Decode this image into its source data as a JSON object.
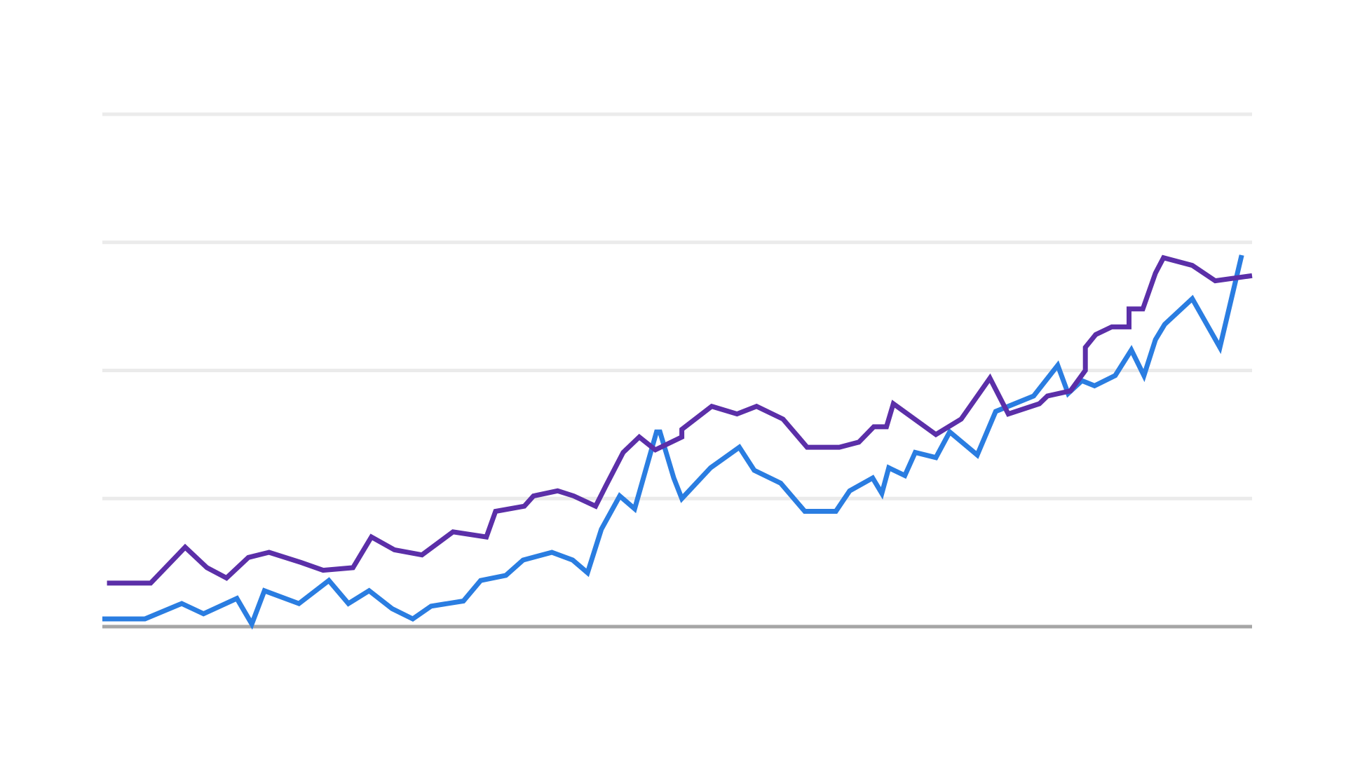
{
  "chart_data": {
    "type": "line",
    "title": "",
    "xlabel": "",
    "ylabel": "",
    "grid": true,
    "legend": "none",
    "x_range": [
      0,
      100
    ],
    "ylim": [
      0,
      100
    ],
    "y_gridlines": [
      25,
      50,
      75,
      100
    ],
    "colors": {
      "grid": "#ebebeb",
      "baseline": "#a6a6a6",
      "blue": "#2a7de1",
      "purple": "#5b2fa8"
    },
    "series": [
      {
        "color": "#2a7de1",
        "points": [
          [
            0.0,
            1.5
          ],
          [
            3.7,
            1.5
          ],
          [
            6.9,
            4.5
          ],
          [
            8.8,
            2.5
          ],
          [
            11.7,
            5.5
          ],
          [
            13.0,
            0.5
          ],
          [
            14.1,
            7.0
          ],
          [
            17.1,
            4.5
          ],
          [
            19.7,
            9.0
          ],
          [
            21.4,
            4.5
          ],
          [
            23.2,
            7.0
          ],
          [
            25.2,
            3.5
          ],
          [
            27.0,
            1.5
          ],
          [
            28.6,
            4.0
          ],
          [
            31.4,
            5.0
          ],
          [
            32.9,
            9.0
          ],
          [
            35.1,
            10.0
          ],
          [
            36.6,
            13.0
          ],
          [
            39.1,
            14.5
          ],
          [
            40.9,
            13.0
          ],
          [
            42.2,
            10.5
          ],
          [
            43.4,
            19.0
          ],
          [
            45.0,
            25.5
          ],
          [
            46.3,
            23.0
          ],
          [
            48.2,
            38.0
          ],
          [
            48.5,
            38.0
          ],
          [
            49.7,
            29.0
          ],
          [
            50.4,
            25.0
          ],
          [
            52.9,
            31.0
          ],
          [
            55.4,
            35.0
          ],
          [
            56.7,
            30.5
          ],
          [
            59.0,
            28.0
          ],
          [
            61.1,
            22.5
          ],
          [
            63.8,
            22.5
          ],
          [
            65.0,
            26.5
          ],
          [
            67.0,
            29.0
          ],
          [
            67.8,
            26.0
          ],
          [
            68.4,
            31.0
          ],
          [
            69.8,
            29.5
          ],
          [
            70.7,
            34.0
          ],
          [
            72.5,
            33.0
          ],
          [
            73.7,
            38.0
          ],
          [
            76.1,
            33.5
          ],
          [
            77.7,
            42.0
          ],
          [
            81.0,
            45.0
          ],
          [
            83.1,
            51.0
          ],
          [
            84.0,
            45.5
          ],
          [
            85.2,
            48.0
          ],
          [
            86.3,
            47.0
          ],
          [
            88.1,
            49.0
          ],
          [
            89.5,
            54.0
          ],
          [
            90.6,
            49.0
          ],
          [
            91.6,
            56.0
          ],
          [
            92.4,
            59.0
          ],
          [
            94.8,
            64.0
          ],
          [
            97.2,
            54.5
          ],
          [
            99.1,
            72.5
          ]
        ]
      },
      {
        "color": "#5b2fa8",
        "points": [
          [
            0.4,
            8.5
          ],
          [
            4.2,
            8.5
          ],
          [
            7.2,
            15.5
          ],
          [
            9.1,
            11.5
          ],
          [
            10.8,
            9.5
          ],
          [
            12.7,
            13.5
          ],
          [
            14.5,
            14.5
          ],
          [
            17.3,
            12.5
          ],
          [
            19.2,
            11.0
          ],
          [
            21.8,
            11.5
          ],
          [
            23.4,
            17.5
          ],
          [
            25.4,
            15.0
          ],
          [
            27.8,
            14.0
          ],
          [
            30.5,
            18.5
          ],
          [
            33.4,
            17.5
          ],
          [
            34.2,
            22.5
          ],
          [
            36.7,
            23.5
          ],
          [
            37.5,
            25.5
          ],
          [
            39.6,
            26.5
          ],
          [
            41.0,
            25.5
          ],
          [
            42.9,
            23.5
          ],
          [
            43.8,
            27.5
          ],
          [
            45.3,
            34.0
          ],
          [
            46.7,
            37.0
          ],
          [
            48.1,
            34.5
          ],
          [
            50.4,
            37.0
          ],
          [
            50.4,
            38.5
          ],
          [
            53.0,
            43.0
          ],
          [
            55.2,
            41.5
          ],
          [
            56.9,
            43.0
          ],
          [
            59.2,
            40.5
          ],
          [
            61.3,
            35.0
          ],
          [
            64.1,
            35.0
          ],
          [
            65.8,
            36.0
          ],
          [
            67.1,
            39.0
          ],
          [
            68.2,
            39.0
          ],
          [
            68.8,
            43.5
          ],
          [
            72.5,
            37.5
          ],
          [
            74.7,
            40.5
          ],
          [
            77.2,
            48.5
          ],
          [
            78.8,
            41.5
          ],
          [
            81.5,
            43.5
          ],
          [
            82.2,
            45.0
          ],
          [
            84.2,
            46.0
          ],
          [
            85.5,
            50.0
          ],
          [
            85.5,
            54.5
          ],
          [
            86.4,
            57.0
          ],
          [
            87.8,
            58.5
          ],
          [
            89.3,
            58.5
          ],
          [
            89.3,
            62.0
          ],
          [
            90.5,
            62.0
          ],
          [
            91.6,
            69.0
          ],
          [
            92.3,
            72.0
          ],
          [
            94.8,
            70.5
          ],
          [
            96.8,
            67.5
          ],
          [
            100.0,
            68.5
          ]
        ]
      }
    ]
  }
}
